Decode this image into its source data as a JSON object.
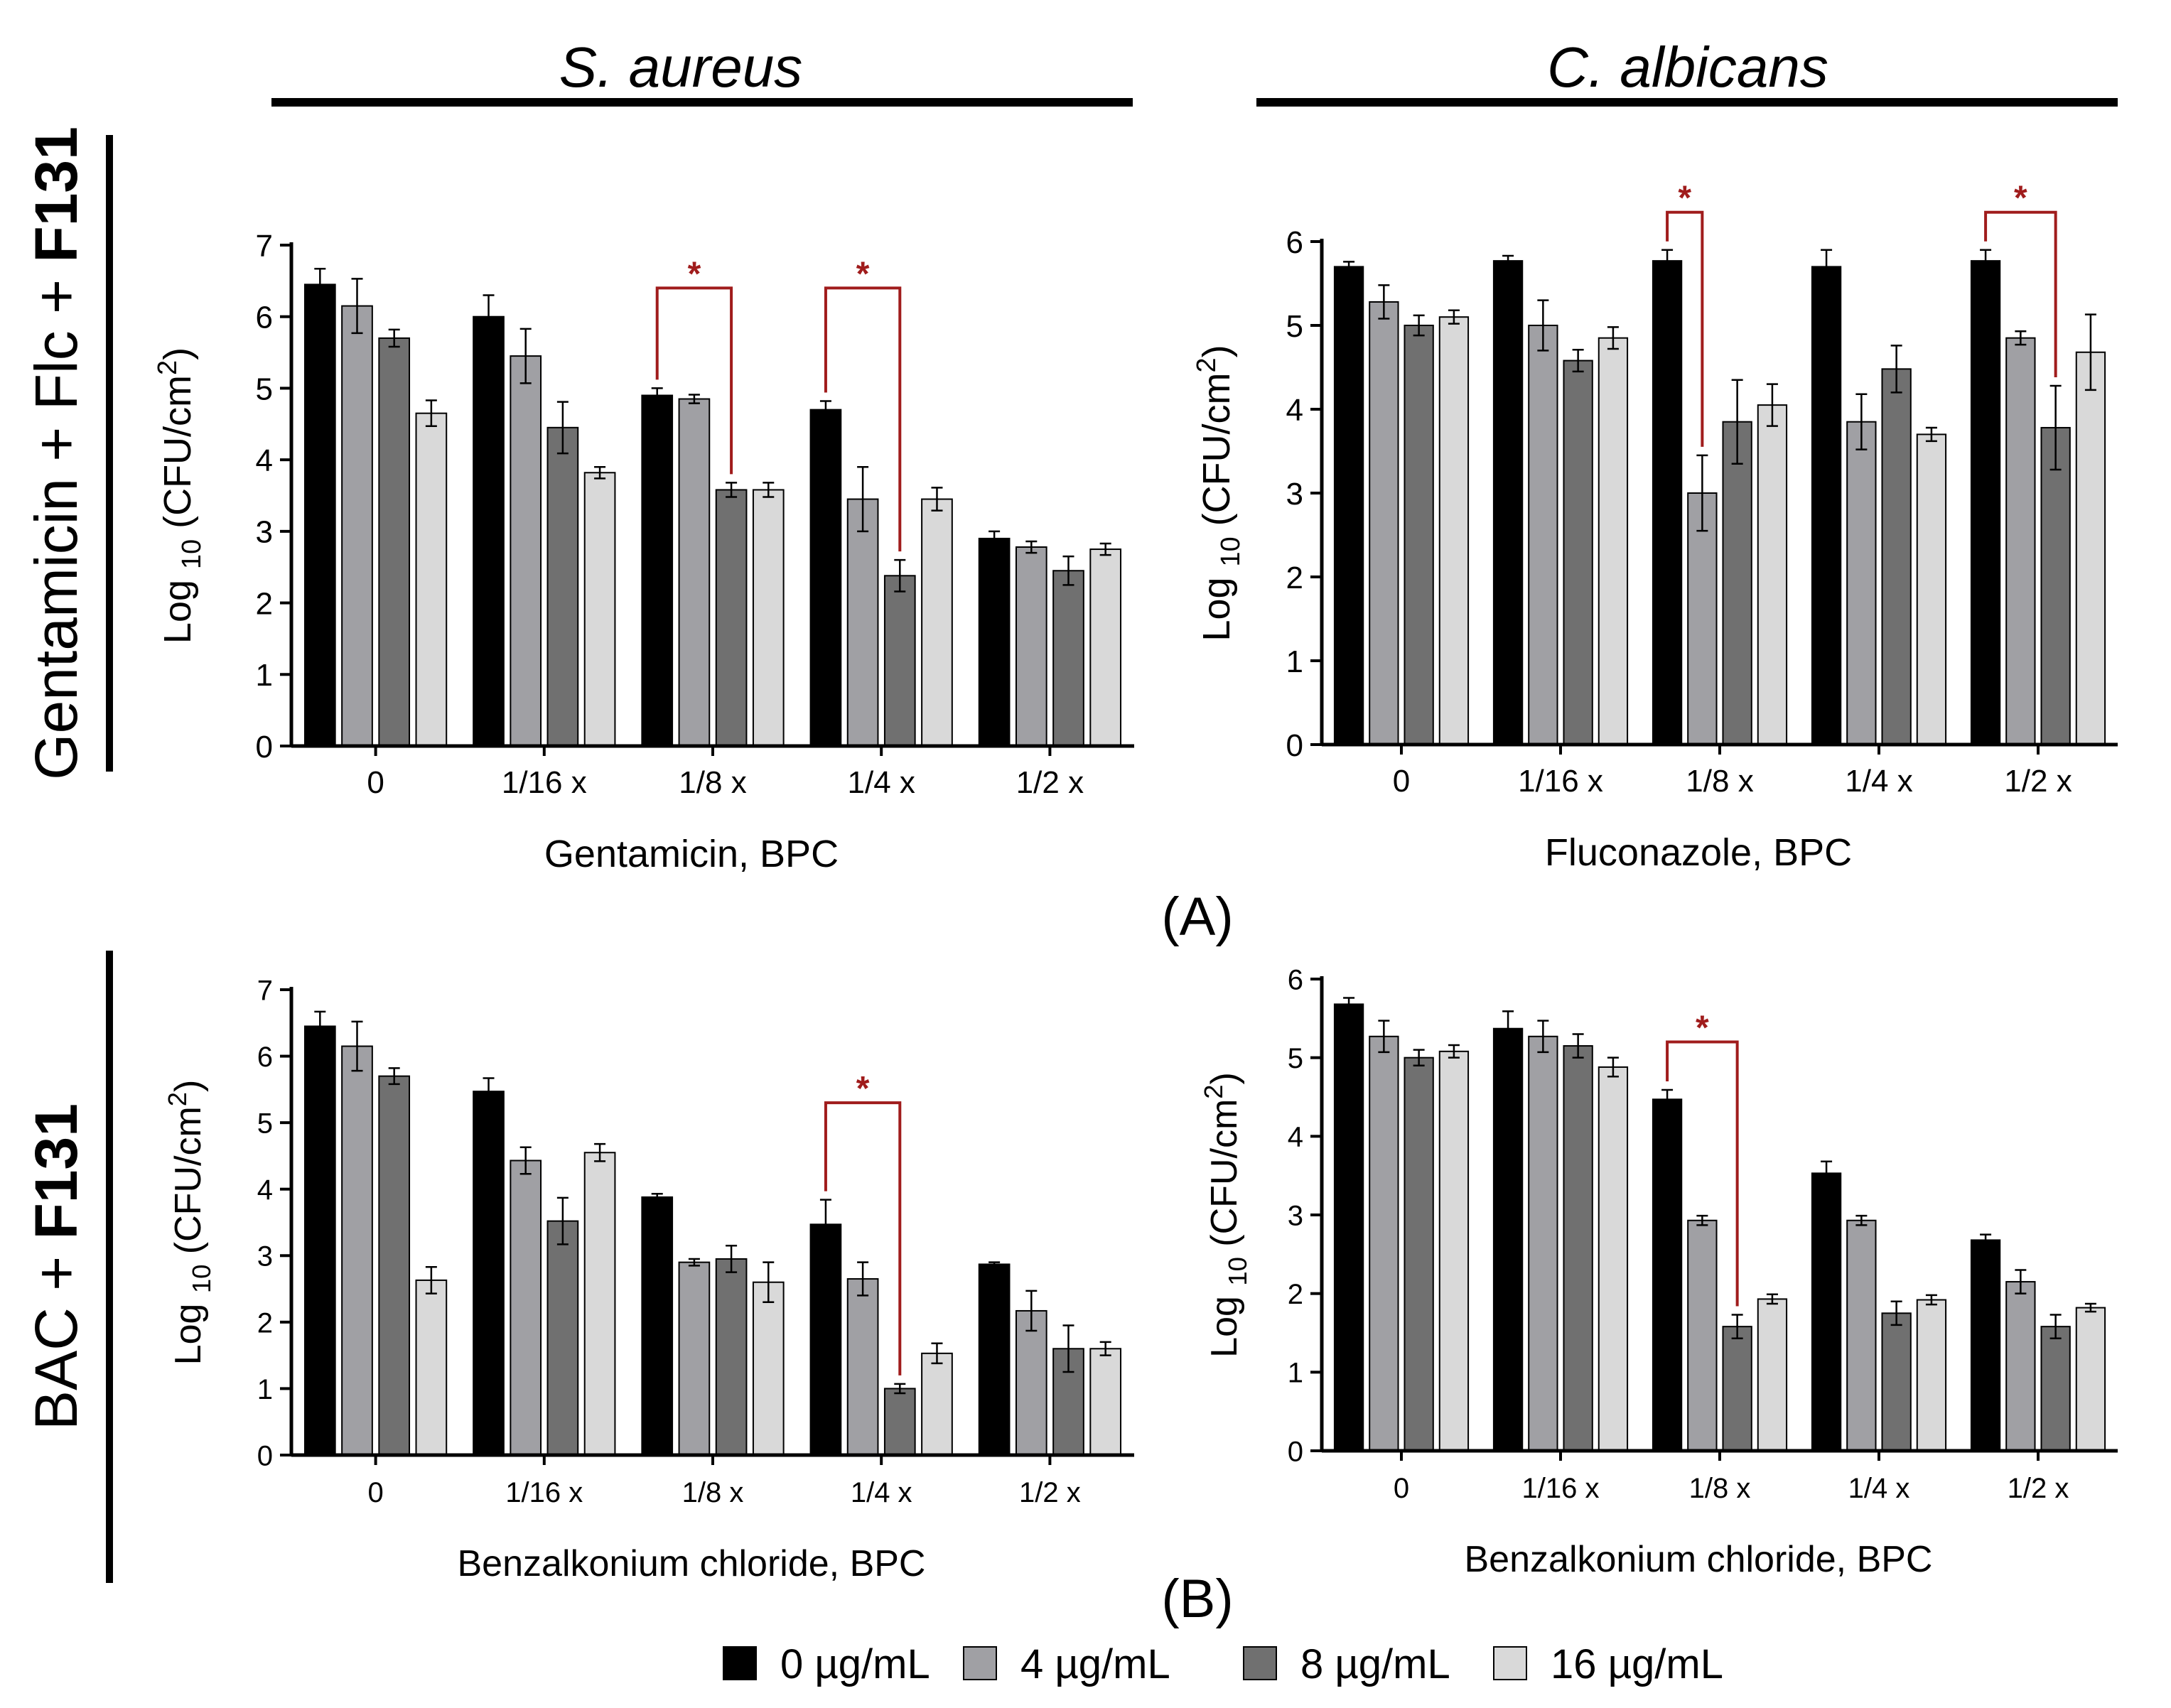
{
  "figure": {
    "organism_headers": [
      "S. aureus",
      "C. albicans"
    ],
    "row_labels": [
      {
        "prefix": "Gentamicin + Flc + ",
        "bold": "F131"
      },
      {
        "prefix": "BAC + ",
        "bold": "F131"
      }
    ],
    "panel_labels": [
      "(A)",
      "(B)"
    ],
    "significance_marker": "*",
    "colors": {
      "series": [
        "#000000",
        "#a0a0a4",
        "#707070",
        "#d9d9d9"
      ],
      "significance": "#a01c1c",
      "axis": "#000000"
    }
  },
  "legend": {
    "items": [
      "0 µg/mL",
      "4 µg/mL",
      "8 µg/mL",
      "16 µg/mL"
    ]
  },
  "chart_data": [
    {
      "id": "A-saureus",
      "type": "bar",
      "ylabel_prefix": "Log ",
      "ylabel_sub": "10",
      "ylabel_mid": " (CFU/cm",
      "ylabel_sup": "2",
      "ylabel_end": ")",
      "xlabel": "Gentamicin, BPC",
      "categories": [
        "0",
        "1/16 x",
        "1/8 x",
        "1/4 x",
        "1/2 x"
      ],
      "ylim": [
        0,
        7
      ],
      "yticks": [
        "0",
        "1",
        "2",
        "3",
        "4",
        "5",
        "6",
        "7"
      ],
      "series": [
        {
          "name": "0 µg/mL",
          "values": [
            6.45,
            6.0,
            4.9,
            4.7,
            2.9
          ],
          "errors": [
            0.22,
            0.3,
            0.1,
            0.12,
            0.1
          ]
        },
        {
          "name": "4 µg/mL",
          "values": [
            6.15,
            5.45,
            4.85,
            3.45,
            2.78
          ],
          "errors": [
            0.38,
            0.38,
            0.06,
            0.45,
            0.08
          ]
        },
        {
          "name": "8 µg/mL",
          "values": [
            5.7,
            4.45,
            3.58,
            2.38,
            2.45
          ],
          "errors": [
            0.12,
            0.36,
            0.1,
            0.22,
            0.2
          ]
        },
        {
          "name": "16 µg/mL",
          "values": [
            4.65,
            3.82,
            3.58,
            3.45,
            2.75
          ],
          "errors": [
            0.18,
            0.08,
            0.1,
            0.16,
            0.08
          ]
        }
      ],
      "significance": [
        {
          "category": 2,
          "from": 0,
          "to": 2,
          "y_top": 6.4,
          "marker": "*"
        },
        {
          "category": 3,
          "from": 0,
          "to": 2,
          "y_top": 6.4,
          "marker": "*"
        }
      ]
    },
    {
      "id": "A-calbicans",
      "type": "bar",
      "ylabel_prefix": "Log ",
      "ylabel_sub": "10",
      "ylabel_mid": " (CFU/cm",
      "ylabel_sup": "2",
      "ylabel_end": ")",
      "xlabel": "Fluconazole, BPC",
      "categories": [
        "0",
        "1/16 x",
        "1/8 x",
        "1/4 x",
        "1/2 x"
      ],
      "ylim": [
        0,
        6
      ],
      "yticks": [
        "0",
        "1",
        "2",
        "3",
        "4",
        "5",
        "6"
      ],
      "series": [
        {
          "name": "0 µg/mL",
          "values": [
            5.7,
            5.77,
            5.77,
            5.7,
            5.77
          ],
          "errors": [
            0.06,
            0.06,
            0.13,
            0.2,
            0.13
          ]
        },
        {
          "name": "4 µg/mL",
          "values": [
            5.28,
            5.0,
            3.0,
            3.85,
            4.85
          ],
          "errors": [
            0.2,
            0.3,
            0.45,
            0.33,
            0.08
          ]
        },
        {
          "name": "8 µg/mL",
          "values": [
            5.0,
            4.58,
            3.85,
            4.48,
            3.78
          ],
          "errors": [
            0.12,
            0.13,
            0.5,
            0.28,
            0.5
          ]
        },
        {
          "name": "16 µg/mL",
          "values": [
            5.1,
            4.85,
            4.05,
            3.7,
            4.68
          ],
          "errors": [
            0.08,
            0.13,
            0.25,
            0.08,
            0.45
          ]
        }
      ],
      "significance": [
        {
          "category": 2,
          "from": 0,
          "to": 1,
          "y_top": 6.35,
          "marker": "*"
        },
        {
          "category": 4,
          "from": 0,
          "to": 2,
          "y_top": 6.35,
          "marker": "*"
        }
      ]
    },
    {
      "id": "B-saureus",
      "type": "bar",
      "ylabel_prefix": "Log ",
      "ylabel_sub": "10",
      "ylabel_mid": " (CFU/cm",
      "ylabel_sup": "2",
      "ylabel_end": ")",
      "xlabel": "Benzalkonium chloride, BPC",
      "categories": [
        "0",
        "1/16 x",
        "1/8 x",
        "1/4 x",
        "1/2 x"
      ],
      "ylim": [
        0,
        7
      ],
      "yticks": [
        "0",
        "1",
        "2",
        "3",
        "4",
        "5",
        "6",
        "7"
      ],
      "series": [
        {
          "name": "0 µg/mL",
          "values": [
            6.45,
            5.47,
            3.88,
            3.47,
            2.87
          ],
          "errors": [
            0.22,
            0.2,
            0.05,
            0.37,
            0.03
          ]
        },
        {
          "name": "4 µg/mL",
          "values": [
            6.15,
            4.43,
            2.9,
            2.65,
            2.17
          ],
          "errors": [
            0.37,
            0.2,
            0.05,
            0.25,
            0.3
          ]
        },
        {
          "name": "8 µg/mL",
          "values": [
            5.7,
            3.52,
            2.95,
            1.0,
            1.6
          ],
          "errors": [
            0.12,
            0.35,
            0.2,
            0.07,
            0.35
          ]
        },
        {
          "name": "16 µg/mL",
          "values": [
            2.63,
            4.55,
            2.6,
            1.53,
            1.6
          ],
          "errors": [
            0.2,
            0.13,
            0.3,
            0.15,
            0.1
          ]
        }
      ],
      "significance": [
        {
          "category": 3,
          "from": 0,
          "to": 2,
          "y_top": 5.3,
          "marker": "*"
        }
      ]
    },
    {
      "id": "B-calbicans",
      "type": "bar",
      "ylabel_prefix": "Log ",
      "ylabel_sub": "10",
      "ylabel_mid": " (CFU/cm",
      "ylabel_sup": "2",
      "ylabel_end": ")",
      "xlabel": "Benzalkonium chloride, BPC",
      "categories": [
        "0",
        "1/16 x",
        "1/8 x",
        "1/4 x",
        "1/2 x"
      ],
      "ylim": [
        0,
        6
      ],
      "yticks": [
        "0",
        "1",
        "2",
        "3",
        "4",
        "5",
        "6"
      ],
      "series": [
        {
          "name": "0 µg/mL",
          "values": [
            5.68,
            5.37,
            4.47,
            3.53,
            2.68
          ],
          "errors": [
            0.08,
            0.22,
            0.12,
            0.15,
            0.07
          ]
        },
        {
          "name": "4 µg/mL",
          "values": [
            5.27,
            5.27,
            2.93,
            2.93,
            2.15
          ],
          "errors": [
            0.2,
            0.2,
            0.06,
            0.06,
            0.15
          ]
        },
        {
          "name": "8 µg/mL",
          "values": [
            5.0,
            5.15,
            1.58,
            1.75,
            1.58
          ],
          "errors": [
            0.1,
            0.15,
            0.15,
            0.15,
            0.15
          ]
        },
        {
          "name": "16 µg/mL",
          "values": [
            5.08,
            4.88,
            1.93,
            1.92,
            1.82
          ],
          "errors": [
            0.08,
            0.12,
            0.06,
            0.06,
            0.05
          ]
        }
      ],
      "significance": [
        {
          "category": 2,
          "from": 0,
          "to": 2,
          "y_top": 5.2,
          "marker": "*"
        }
      ]
    }
  ]
}
